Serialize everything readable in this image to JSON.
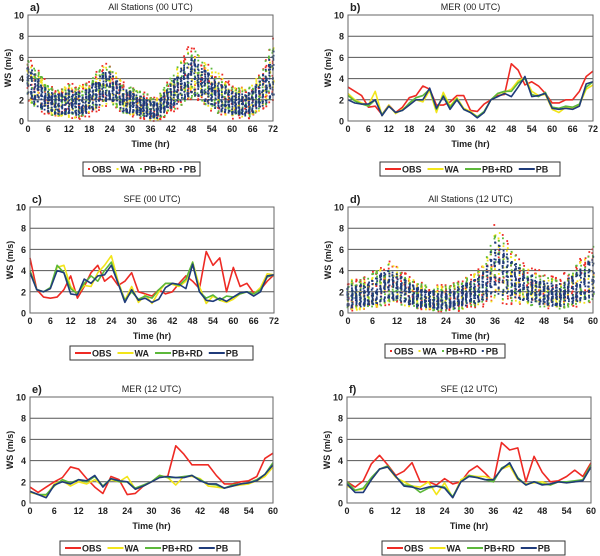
{
  "colors": {
    "OBS": "#ee2a24",
    "WA": "#f2e51a",
    "PB+RD": "#5cb83a",
    "PB": "#1f3b7a"
  },
  "chart_data": [
    {
      "panel": "a)",
      "title": "All Stations (00 UTC)",
      "type": "scatter",
      "xlabel": "Time (hr)",
      "ylabel": "WS (m/s)",
      "xlim": [
        0,
        72
      ],
      "ylim": [
        0,
        10
      ],
      "xticks": [
        0,
        6,
        12,
        18,
        24,
        30,
        36,
        42,
        48,
        54,
        60,
        66,
        72
      ],
      "yticks": [
        0,
        2,
        4,
        6,
        8,
        10
      ],
      "grid": true,
      "legend": [
        "OBS",
        "WA",
        "PB+RD",
        "PB"
      ],
      "legend_position": "bottom",
      "envelope": {
        "low": [
          2.0,
          1.2,
          0.8,
          0.5,
          0.4,
          0.4,
          0.3,
          0.2,
          0.3,
          0.5,
          0.9,
          1.3,
          1.6,
          1.2,
          0.6,
          0.4,
          0.3,
          0.2,
          0.0,
          0.0,
          0.4,
          0.8,
          1.2,
          1.6,
          2.0,
          1.8,
          1.4,
          1.0,
          0.6,
          0.4,
          0.2,
          0.2,
          0.2,
          0.4,
          0.8,
          1.2,
          1.8
        ],
        "high": [
          6.0,
          5.2,
          4.4,
          3.4,
          3.0,
          3.2,
          3.6,
          3.4,
          3.4,
          3.8,
          4.6,
          5.4,
          5.4,
          4.6,
          3.6,
          3.4,
          3.0,
          2.8,
          2.4,
          2.2,
          3.2,
          4.2,
          5.2,
          6.5,
          7.2,
          6.4,
          5.6,
          5.2,
          4.6,
          4.0,
          3.4,
          3.2,
          3.2,
          3.6,
          4.6,
          5.8,
          8.0
        ]
      }
    },
    {
      "panel": "b)",
      "title": "MER (00 UTC)",
      "type": "line",
      "xlabel": "Time (hr)",
      "ylabel": "WS (m/s)",
      "xlim": [
        0,
        72
      ],
      "ylim": [
        0,
        10
      ],
      "xticks": [
        0,
        6,
        12,
        18,
        24,
        30,
        36,
        42,
        48,
        54,
        60,
        66,
        72
      ],
      "yticks": [
        0,
        2,
        4,
        6,
        8,
        10
      ],
      "grid": true,
      "legend_position": "bottom",
      "series": [
        {
          "name": "OBS",
          "values": [
            3.2,
            2.8,
            2.4,
            1.3,
            1.4,
            0.6,
            1.5,
            0.8,
            1.3,
            2.2,
            2.4,
            3.3,
            3.0,
            1.5,
            1.5,
            1.8,
            2.4,
            2.4,
            1.0,
            0.9,
            1.6,
            2.0,
            2.4,
            2.5,
            5.4,
            4.8,
            3.4,
            3.7,
            3.3,
            2.6,
            1.7,
            1.7,
            2.0,
            2.0,
            2.8,
            4.2,
            4.7
          ]
        },
        {
          "name": "WA",
          "values": [
            2.6,
            2.0,
            1.7,
            1.5,
            2.8,
            0.5,
            1.5,
            0.7,
            1.1,
            1.6,
            2.0,
            1.8,
            2.9,
            0.8,
            2.7,
            1.4,
            2.2,
            1.2,
            0.9,
            0.4,
            0.8,
            2.0,
            2.6,
            2.7,
            3.0,
            3.8,
            4.1,
            2.8,
            2.4,
            2.5,
            1.1,
            0.8,
            1.3,
            1.2,
            1.5,
            3.0,
            3.4
          ]
        },
        {
          "name": "PB+RD",
          "values": [
            2.4,
            1.9,
            1.6,
            1.4,
            2.0,
            0.6,
            1.4,
            0.8,
            1.0,
            1.7,
            2.2,
            2.4,
            3.0,
            1.1,
            2.4,
            1.3,
            2.1,
            1.1,
            0.8,
            0.4,
            0.9,
            2.0,
            2.6,
            2.8,
            2.8,
            3.6,
            4.0,
            2.5,
            2.3,
            2.7,
            1.3,
            1.2,
            1.4,
            1.3,
            1.6,
            3.2,
            3.7
          ]
        },
        {
          "name": "PB",
          "values": [
            2.0,
            1.7,
            1.6,
            1.6,
            2.0,
            0.5,
            1.4,
            0.8,
            1.0,
            1.5,
            2.0,
            2.0,
            3.1,
            1.2,
            2.3,
            1.1,
            2.0,
            1.1,
            0.8,
            0.3,
            0.8,
            2.0,
            2.3,
            2.6,
            2.3,
            3.2,
            4.2,
            2.3,
            2.4,
            2.6,
            1.2,
            1.1,
            1.2,
            1.1,
            1.4,
            3.5,
            3.7
          ]
        }
      ]
    },
    {
      "panel": "c)",
      "title": "SFE (00 UTC)",
      "type": "line",
      "xlabel": "Time (hr)",
      "ylabel": "WS (m/s)",
      "xlim": [
        0,
        72
      ],
      "ylim": [
        0,
        10
      ],
      "xticks": [
        0,
        6,
        12,
        18,
        24,
        30,
        36,
        42,
        48,
        54,
        60,
        66,
        72
      ],
      "yticks": [
        0,
        2,
        4,
        6,
        8,
        10
      ],
      "grid": true,
      "legend_position": "bottom",
      "series": [
        {
          "name": "OBS",
          "values": [
            5.2,
            2.2,
            1.5,
            1.4,
            1.5,
            2.2,
            3.5,
            1.4,
            2.5,
            3.8,
            4.5,
            3.0,
            3.5,
            2.6,
            3.0,
            3.8,
            2.0,
            1.8,
            1.6,
            2.2,
            1.8,
            2.0,
            2.8,
            3.5,
            3.0,
            2.3,
            5.8,
            4.5,
            5.2,
            2.0,
            4.3,
            2.5,
            2.8,
            1.9,
            2.2,
            3.0,
            3.6
          ]
        },
        {
          "name": "WA",
          "values": [
            4.0,
            2.2,
            2.0,
            2.3,
            4.3,
            4.5,
            2.5,
            1.8,
            2.6,
            2.5,
            3.8,
            4.5,
            5.4,
            3.0,
            1.2,
            2.5,
            1.0,
            1.7,
            0.9,
            2.0,
            2.8,
            2.7,
            2.5,
            3.0,
            4.8,
            2.5,
            0.9,
            1.6,
            1.2,
            1.0,
            1.3,
            1.8,
            2.0,
            1.8,
            2.4,
            3.7,
            3.6
          ]
        },
        {
          "name": "PB+RD",
          "values": [
            4.0,
            2.2,
            2.0,
            2.4,
            4.5,
            3.8,
            2.3,
            1.8,
            2.8,
            3.5,
            3.0,
            4.0,
            4.8,
            2.8,
            1.2,
            2.0,
            1.3,
            1.6,
            1.4,
            2.2,
            2.8,
            2.8,
            2.6,
            3.2,
            4.8,
            2.0,
            1.4,
            1.7,
            1.2,
            1.6,
            1.5,
            1.8,
            2.0,
            1.8,
            2.2,
            3.4,
            3.6
          ]
        },
        {
          "name": "PB",
          "values": [
            3.8,
            2.2,
            2.0,
            2.3,
            4.0,
            3.8,
            1.8,
            1.7,
            3.2,
            2.8,
            3.5,
            3.6,
            4.5,
            2.8,
            1.0,
            2.2,
            1.2,
            1.4,
            1.0,
            1.3,
            2.4,
            2.8,
            2.7,
            2.3,
            4.6,
            2.0,
            1.2,
            1.1,
            1.4,
            1.1,
            1.5,
            1.9,
            2.0,
            1.6,
            2.0,
            3.5,
            3.6
          ]
        }
      ]
    },
    {
      "panel": "d)",
      "title": "All Stations (12 UTC)",
      "type": "scatter",
      "xlabel": "Time (hr)",
      "ylabel": "WS (m/s)",
      "xlim": [
        0,
        60
      ],
      "ylim": [
        0,
        10
      ],
      "xticks": [
        0,
        6,
        12,
        18,
        24,
        30,
        36,
        42,
        48,
        54,
        60
      ],
      "yticks": [
        0,
        2,
        4,
        6,
        8,
        10
      ],
      "grid": true,
      "legend": [
        "OBS",
        "WA",
        "PB+RD",
        "PB"
      ],
      "legend_position": "bottom",
      "envelope": {
        "low": [
          0.2,
          0.2,
          0.3,
          0.4,
          0.6,
          0.8,
          0.8,
          0.6,
          0.4,
          0.2,
          0.2,
          0.1,
          0.1,
          0.1,
          0.3,
          0.5,
          0.6,
          0.8,
          1.0,
          1.0,
          0.9,
          0.8,
          0.6,
          0.5,
          0.4,
          0.3,
          0.3,
          0.5,
          0.6,
          0.8,
          1.0
        ],
        "high": [
          3.4,
          3.2,
          3.4,
          3.8,
          4.6,
          4.8,
          4.4,
          3.8,
          3.2,
          2.8,
          2.6,
          2.6,
          2.6,
          2.8,
          3.2,
          3.6,
          4.2,
          5.4,
          8.6,
          7.4,
          6.0,
          5.2,
          4.6,
          4.2,
          3.8,
          3.4,
          3.4,
          4.0,
          4.6,
          5.4,
          6.4
        ]
      }
    },
    {
      "panel": "e)",
      "title": "MER (12 UTC)",
      "type": "line",
      "xlabel": "Time (hr)",
      "ylabel": "WS (m/s)",
      "xlim": [
        0,
        60
      ],
      "ylim": [
        0,
        10
      ],
      "xticks": [
        0,
        6,
        12,
        18,
        24,
        30,
        36,
        42,
        48,
        54,
        60
      ],
      "yticks": [
        0,
        2,
        4,
        6,
        8,
        10
      ],
      "grid": true,
      "legend_position": "bottom",
      "series": [
        {
          "name": "OBS",
          "values": [
            1.5,
            1.0,
            1.5,
            2.0,
            2.4,
            3.4,
            3.2,
            2.3,
            1.5,
            0.9,
            2.5,
            2.2,
            0.8,
            0.9,
            1.6,
            2.0,
            2.5,
            2.5,
            5.4,
            4.6,
            3.6,
            3.6,
            3.6,
            2.6,
            1.8,
            1.8,
            2.0,
            2.1,
            2.5,
            4.2,
            4.7
          ]
        },
        {
          "name": "WA",
          "values": [
            1.0,
            0.8,
            0.7,
            1.8,
            2.1,
            1.6,
            2.0,
            1.8,
            2.2,
            1.6,
            2.2,
            2.0,
            2.5,
            1.3,
            1.6,
            2.0,
            2.6,
            2.4,
            1.7,
            2.5,
            2.5,
            2.3,
            1.6,
            1.5,
            1.4,
            1.6,
            1.7,
            1.8,
            2.1,
            2.5,
            3.4
          ]
        },
        {
          "name": "PB+RD",
          "values": [
            1.1,
            0.8,
            0.8,
            1.6,
            2.2,
            1.9,
            2.2,
            2.0,
            2.5,
            1.6,
            2.3,
            2.0,
            2.0,
            1.4,
            1.7,
            2.0,
            2.6,
            2.4,
            2.4,
            2.5,
            2.6,
            2.2,
            1.8,
            1.7,
            1.4,
            1.7,
            1.8,
            1.9,
            2.2,
            2.7,
            3.8
          ]
        },
        {
          "name": "PB",
          "values": [
            1.1,
            0.8,
            0.5,
            1.7,
            2.0,
            1.8,
            2.2,
            2.1,
            2.6,
            1.5,
            2.3,
            2.1,
            2.0,
            1.3,
            1.6,
            2.0,
            2.4,
            2.5,
            2.4,
            2.4,
            2.6,
            2.1,
            1.8,
            1.8,
            1.4,
            1.6,
            1.8,
            1.9,
            2.1,
            2.7,
            3.6
          ]
        }
      ]
    },
    {
      "panel": "f)",
      "title": "SFE (12 UTC)",
      "type": "line",
      "xlabel": "Time (hr)",
      "ylabel": "WS (m/s)",
      "xlim": [
        0,
        60
      ],
      "ylim": [
        0,
        10
      ],
      "xticks": [
        0,
        6,
        12,
        18,
        24,
        30,
        36,
        42,
        48,
        54,
        60
      ],
      "yticks": [
        0,
        2,
        4,
        6,
        8,
        10
      ],
      "grid": true,
      "legend_position": "bottom",
      "series": [
        {
          "name": "OBS",
          "values": [
            2.0,
            1.5,
            2.1,
            3.7,
            4.5,
            3.6,
            2.6,
            3.0,
            3.8,
            2.0,
            2.0,
            1.7,
            2.3,
            1.8,
            2.0,
            3.0,
            3.5,
            2.8,
            2.0,
            5.7,
            5.0,
            5.2,
            2.0,
            4.4,
            2.9,
            2.0,
            2.1,
            2.5,
            3.1,
            2.5,
            3.8
          ]
        },
        {
          "name": "WA",
          "values": [
            1.6,
            1.2,
            1.3,
            2.2,
            3.2,
            3.4,
            2.4,
            2.0,
            1.6,
            1.5,
            2.0,
            0.8,
            1.9,
            0.5,
            2.2,
            2.6,
            2.5,
            2.5,
            2.2,
            3.2,
            3.5,
            2.2,
            1.8,
            1.9,
            2.0,
            1.7,
            2.0,
            1.9,
            2.0,
            2.2,
            3.4
          ]
        },
        {
          "name": "PB+RD",
          "values": [
            2.0,
            1.2,
            1.4,
            2.4,
            3.2,
            3.5,
            2.5,
            1.7,
            1.6,
            1.0,
            1.4,
            1.6,
            1.5,
            0.6,
            2.0,
            2.6,
            2.4,
            2.2,
            2.0,
            3.3,
            3.7,
            2.4,
            1.7,
            2.0,
            1.8,
            1.7,
            2.0,
            2.0,
            2.1,
            2.2,
            3.6
          ]
        },
        {
          "name": "PB",
          "values": [
            1.8,
            1.0,
            1.0,
            2.2,
            3.2,
            3.4,
            2.5,
            1.6,
            1.5,
            1.3,
            1.5,
            1.6,
            1.4,
            0.5,
            2.0,
            2.5,
            2.4,
            2.2,
            2.2,
            3.2,
            3.8,
            2.3,
            1.7,
            2.0,
            1.7,
            1.8,
            2.0,
            1.9,
            2.0,
            2.1,
            3.4
          ]
        }
      ]
    }
  ]
}
